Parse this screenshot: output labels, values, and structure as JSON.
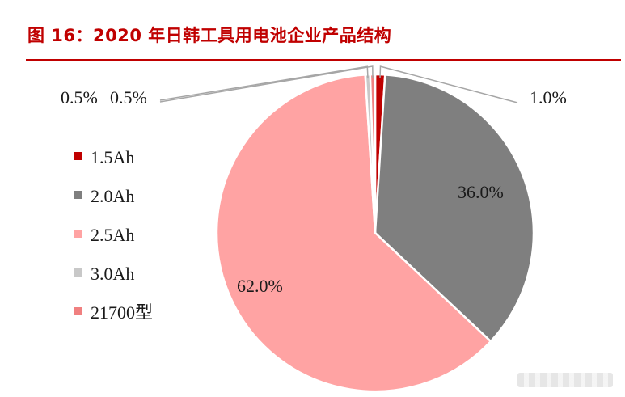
{
  "title": "图 16：2020 年日韩工具用电池企业产品结构",
  "colors": {
    "title": "#c00000",
    "slices": [
      "#c00000",
      "#7f7f7f",
      "#ffa3a3",
      "#c8c8c8",
      "#f08080"
    ],
    "edge": "#ffffff",
    "leader": "#a6a6a6"
  },
  "chart_data": {
    "type": "pie",
    "title": "图 16：2020 年日韩工具用电池企业产品结构",
    "start_angle_deg": 0,
    "direction": "clockwise",
    "legend_position": "left",
    "slices": [
      {
        "name": "1.5Ah",
        "value": 1.0,
        "label": "1.0%"
      },
      {
        "name": "2.0Ah",
        "value": 36.0,
        "label": "36.0%"
      },
      {
        "name": "2.5Ah",
        "value": 62.0,
        "label": "62.0%"
      },
      {
        "name": "3.0Ah",
        "value": 0.5,
        "label": "0.5%"
      },
      {
        "name": "21700型",
        "value": 0.5,
        "label": "0.5%"
      }
    ]
  }
}
